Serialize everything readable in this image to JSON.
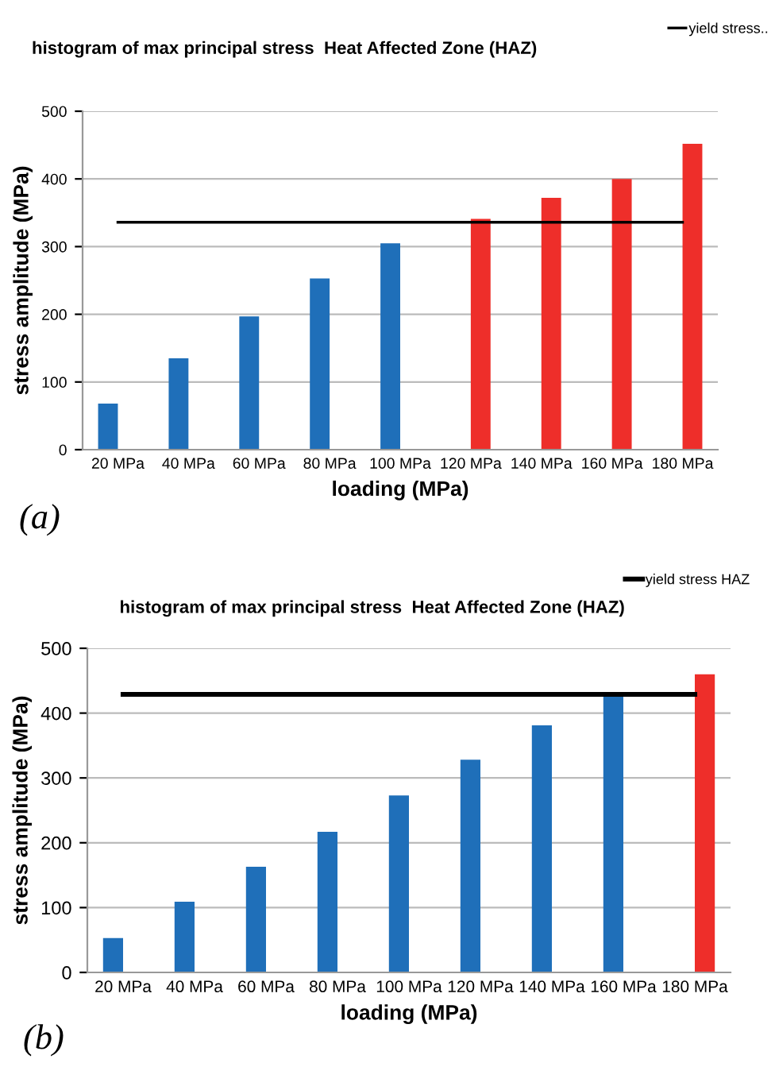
{
  "chart_data": [
    {
      "type": "bar",
      "title": "histogram of max principal stress  Heat Affected Zone (HAZ)",
      "xlabel": "loading (MPa)",
      "ylabel": "stress amplitude (MPa)",
      "categories": [
        "20 MPa",
        "40 MPa",
        "60 MPa",
        "80 MPa",
        "100 MPa",
        "120 MPa",
        "140 MPa",
        "160 MPa",
        "180 MPa"
      ],
      "series": [
        {
          "color": "#1f6fb9",
          "values": [
            68,
            135,
            197,
            253,
            305,
            null,
            null,
            null,
            null
          ]
        },
        {
          "color": "#ee2e2a",
          "values": [
            null,
            null,
            null,
            null,
            null,
            341,
            372,
            400,
            452
          ]
        },
        {
          "name": "yield stress..",
          "type": "line",
          "color": "#000000",
          "values": [
            336,
            336,
            336,
            336,
            336,
            336,
            336,
            336,
            336
          ]
        }
      ],
      "ylim": [
        0,
        500
      ],
      "yticks": [
        0,
        100,
        200,
        300,
        400,
        500
      ],
      "grid": "y",
      "legend": "top right",
      "annotations": [
        "(a)"
      ]
    },
    {
      "type": "bar",
      "title": "histogram of max principal stress  Heat Affected Zone (HAZ)",
      "xlabel": "loading (MPa)",
      "ylabel": "stress amplitude (MPa)",
      "categories": [
        "20 MPa",
        "40 MPa",
        "60 MPa",
        "80 MPa",
        "100 MPa",
        "120 MPa",
        "140 MPa",
        "160 MPa",
        "180 MPa"
      ],
      "series": [
        {
          "color": "#1f6fb9",
          "values": [
            53,
            109,
            163,
            217,
            273,
            328,
            381,
            428,
            null
          ]
        },
        {
          "color": "#ee2e2a",
          "values": [
            null,
            null,
            null,
            null,
            null,
            null,
            null,
            null,
            460
          ]
        },
        {
          "name": "yield stress HAZ",
          "type": "line",
          "color": "#000000",
          "values": [
            429,
            429,
            429,
            429,
            429,
            429,
            429,
            429,
            429
          ]
        }
      ],
      "ylim": [
        0,
        500
      ],
      "yticks": [
        0,
        100,
        200,
        300,
        400,
        500
      ],
      "grid": "y",
      "legend": "top right",
      "annotations": [
        "(b)"
      ]
    }
  ]
}
